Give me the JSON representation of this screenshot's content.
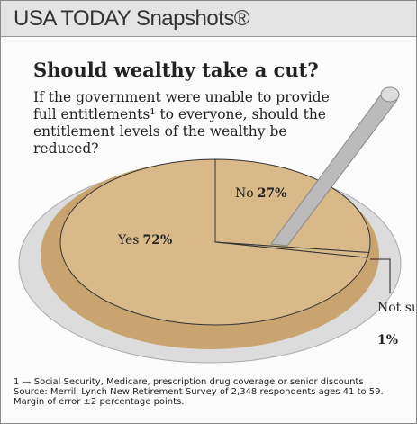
{
  "header": "USA TODAY Snapshots®",
  "chart_data": {
    "type": "pie",
    "title": "Should wealthy take a cut?",
    "subtitle": "If the government were unable to provide full entitlements¹ to everyone, should the entitlement levels of the wealthy be reduced?",
    "categories": [
      "Yes",
      "No",
      "Not sure"
    ],
    "values": [
      72,
      27,
      1
    ],
    "value_labels": [
      "72%",
      "27%",
      "1%"
    ],
    "color": "#d9b98a"
  },
  "footnote": "1 — Social Security, Medicare, prescription drug coverage or senior discounts",
  "source": "Source: Merrill Lynch New Retirement Survey of 2,348 respondents ages 41 to 59. Margin of error ±2 percentage points."
}
